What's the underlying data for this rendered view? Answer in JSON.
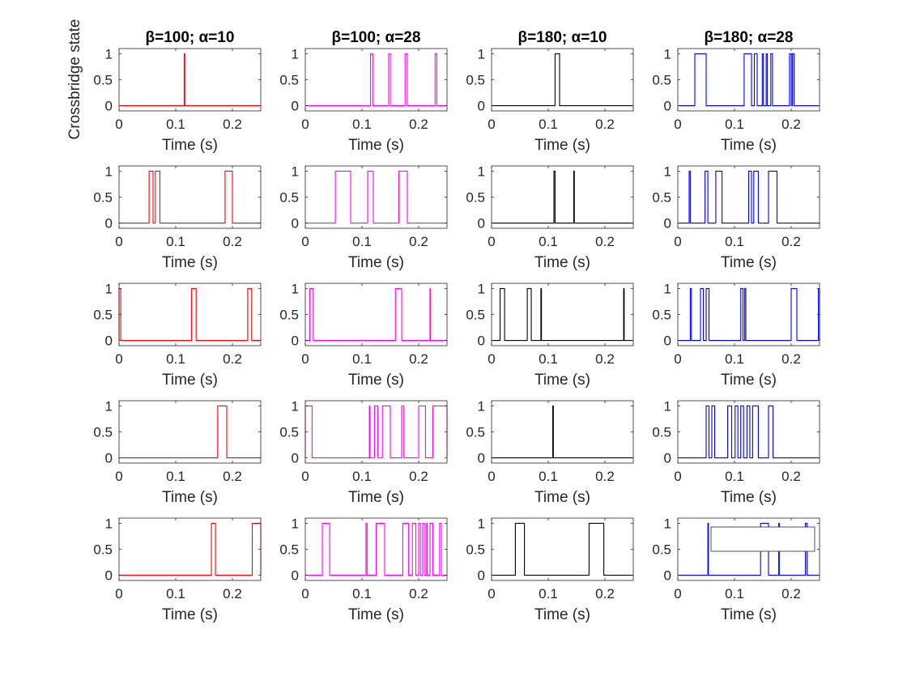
{
  "chart_data": {
    "type": "line",
    "layout": {
      "rows": 5,
      "cols": 4
    },
    "ylabel": "Crossbridge state",
    "xlabel": "Time (s)",
    "xlim": [
      0,
      0.25
    ],
    "ylim": [
      -0.1,
      1.1
    ],
    "xticks": [
      0,
      0.1,
      0.2
    ],
    "yticks": [
      0,
      0.5,
      1
    ],
    "xtick_labels": [
      "0",
      "0.1",
      "0.2"
    ],
    "ytick_labels": [
      "0",
      "0.5",
      "1"
    ],
    "columns": [
      {
        "title": "β=100; α=10",
        "color": "#ff0000"
      },
      {
        "title": "β=100; α=28",
        "color": "#ff00ff"
      },
      {
        "title": "β=180; α=10",
        "color": "#000000"
      },
      {
        "title": "β=180; α=28",
        "color": "#0000ff"
      }
    ],
    "series_note": "each panel: binary state (0/1); intervals = [start, end] in seconds where state = 1",
    "panels": [
      [
        {
          "intervals": [
            [
              0.115,
              0.116
            ]
          ]
        },
        {
          "intervals": [
            [
              0.115,
              0.119
            ],
            [
              0.147,
              0.15
            ],
            [
              0.176,
              0.18
            ],
            [
              0.229,
              0.232
            ]
          ]
        },
        {
          "intervals": [
            [
              0.112,
              0.12
            ]
          ]
        },
        {
          "intervals": [
            [
              0.03,
              0.05
            ],
            [
              0.117,
              0.13
            ],
            [
              0.135,
              0.14
            ],
            [
              0.149,
              0.151
            ],
            [
              0.156,
              0.158
            ],
            [
              0.164,
              0.167
            ],
            [
              0.197,
              0.2
            ],
            [
              0.202,
              0.205
            ]
          ]
        }
      ],
      [
        {
          "intervals": [
            [
              0.053,
              0.06
            ],
            [
              0.064,
              0.072
            ],
            [
              0.187,
              0.2
            ]
          ]
        },
        {
          "intervals": [
            [
              0.053,
              0.08
            ],
            [
              0.11,
              0.12
            ],
            [
              0.165,
              0.18
            ]
          ]
        },
        {
          "intervals": [
            [
              0.11,
              0.112
            ],
            [
              0.145,
              0.146
            ]
          ]
        },
        {
          "intervals": [
            [
              0.02,
              0.022
            ],
            [
              0.048,
              0.053
            ],
            [
              0.067,
              0.078
            ],
            [
              0.125,
              0.13
            ],
            [
              0.134,
              0.142
            ],
            [
              0.16,
              0.175
            ]
          ]
        }
      ],
      [
        {
          "intervals": [
            [
              0.0,
              0.003
            ],
            [
              0.128,
              0.136
            ],
            [
              0.227,
              0.234
            ]
          ]
        },
        {
          "intervals": [
            [
              0.008,
              0.014
            ],
            [
              0.159,
              0.17
            ],
            [
              0.22,
              0.221
            ]
          ]
        },
        {
          "intervals": [
            [
              0.015,
              0.023
            ],
            [
              0.063,
              0.07
            ],
            [
              0.087,
              0.088
            ],
            [
              0.233,
              0.234
            ]
          ]
        },
        {
          "intervals": [
            [
              0.022,
              0.024
            ],
            [
              0.04,
              0.045
            ],
            [
              0.05,
              0.055
            ],
            [
              0.111,
              0.115
            ],
            [
              0.118,
              0.12
            ],
            [
              0.2,
              0.21
            ],
            [
              0.248,
              0.25
            ]
          ]
        }
      ],
      [
        {
          "intervals": [
            [
              0.174,
              0.19
            ]
          ]
        },
        {
          "intervals": [
            [
              0.0,
              0.012
            ],
            [
              0.113,
              0.114
            ],
            [
              0.122,
              0.128
            ],
            [
              0.136,
              0.15
            ],
            [
              0.17,
              0.174
            ],
            [
              0.2,
              0.212
            ],
            [
              0.225,
              0.25
            ]
          ]
        },
        {
          "intervals": [
            [
              0.108,
              0.109
            ]
          ]
        },
        {
          "intervals": [
            [
              0.05,
              0.055
            ],
            [
              0.06,
              0.065
            ],
            [
              0.088,
              0.095
            ],
            [
              0.101,
              0.106
            ],
            [
              0.111,
              0.116
            ],
            [
              0.122,
              0.127
            ],
            [
              0.132,
              0.142
            ],
            [
              0.16,
              0.168
            ]
          ]
        }
      ],
      [
        {
          "intervals": [
            [
              0.163,
              0.17
            ],
            [
              0.235,
              0.25
            ]
          ]
        },
        {
          "intervals": [
            [
              0.03,
              0.043
            ],
            [
              0.107,
              0.109
            ],
            [
              0.125,
              0.14
            ],
            [
              0.172,
              0.182
            ],
            [
              0.189,
              0.195
            ],
            [
              0.2,
              0.203
            ],
            [
              0.207,
              0.21
            ],
            [
              0.213,
              0.215
            ],
            [
              0.22,
              0.225
            ],
            [
              0.237,
              0.24
            ]
          ]
        },
        {
          "intervals": [
            [
              0.042,
              0.058
            ],
            [
              0.172,
              0.198
            ]
          ]
        },
        {
          "intervals": [
            [
              0.053,
              0.054
            ],
            [
              0.146,
              0.16
            ],
            [
              0.178,
              0.179
            ],
            [
              0.225,
              0.228
            ]
          ]
        }
      ]
    ]
  }
}
